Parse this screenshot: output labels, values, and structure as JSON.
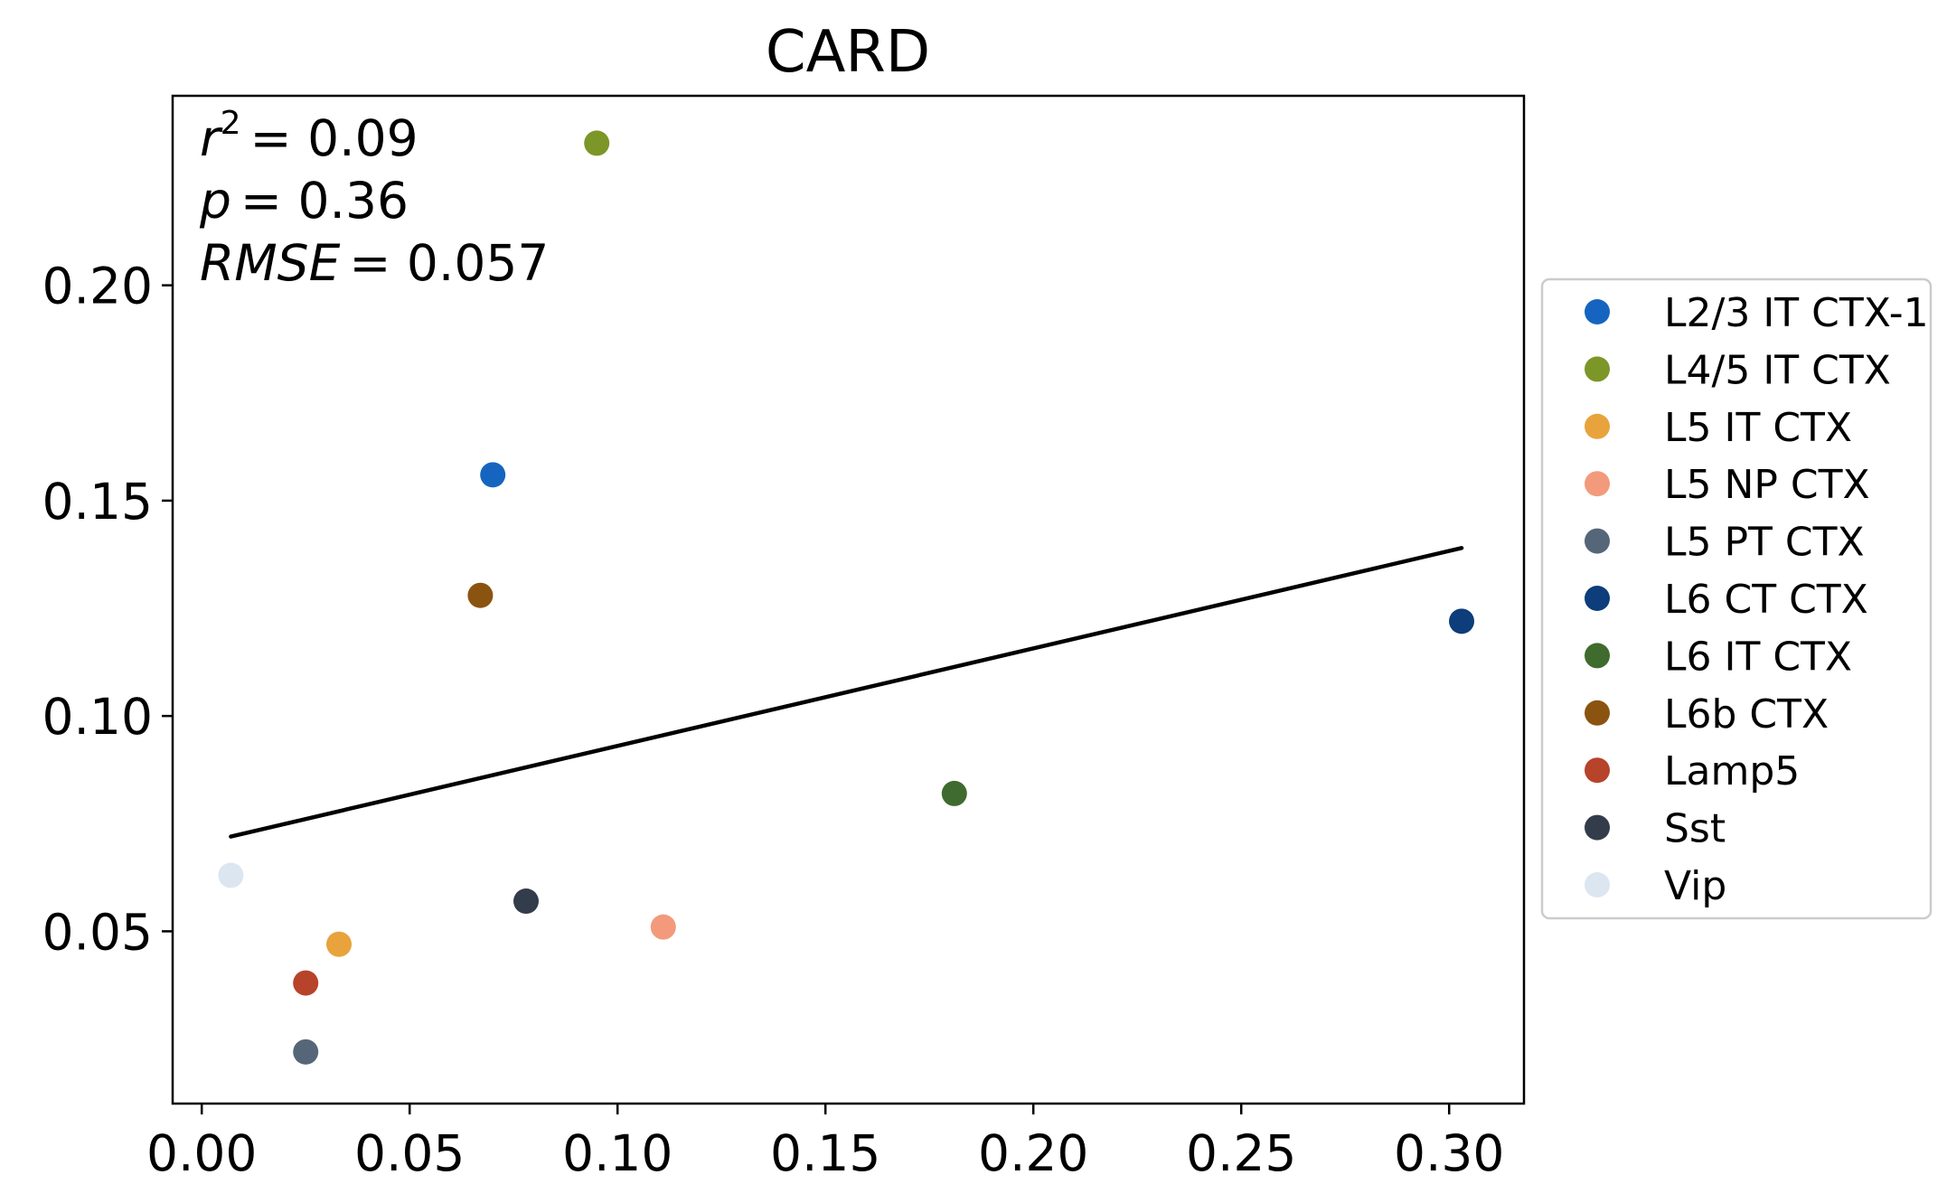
{
  "chart_data": {
    "type": "scatter",
    "title": "CARD",
    "xlabel": "",
    "ylabel": "",
    "xlim": [
      -0.007,
      0.318
    ],
    "ylim": [
      0.01,
      0.244
    ],
    "xticks": [
      0.0,
      0.05,
      0.1,
      0.15,
      0.2,
      0.25,
      0.3
    ],
    "xtick_labels": [
      "0.00",
      "0.05",
      "0.10",
      "0.15",
      "0.20",
      "0.25",
      "0.30"
    ],
    "yticks": [
      0.05,
      0.1,
      0.15,
      0.2
    ],
    "ytick_labels": [
      "0.05",
      "0.10",
      "0.15",
      "0.20"
    ],
    "grid": false,
    "legend_position": "right, outside plot",
    "stats": {
      "r2_label": "r",
      "r2_exp": "2",
      "r2_value": "= 0.09",
      "p_label": "p",
      "p_value": "= 0.36",
      "rmse_label": "RMSE",
      "rmse_value": "= 0.057"
    },
    "points": [
      {
        "name": "L2/3 IT CTX-1",
        "x": 0.07,
        "y": 0.156,
        "color": "#1565c0"
      },
      {
        "name": "L4/5 IT CTX",
        "x": 0.095,
        "y": 0.233,
        "color": "#7c9628"
      },
      {
        "name": "L5 IT CTX",
        "x": 0.033,
        "y": 0.047,
        "color": "#e8a33c"
      },
      {
        "name": "L5 NP CTX",
        "x": 0.111,
        "y": 0.051,
        "color": "#f39a7c"
      },
      {
        "name": "L5 PT CTX",
        "x": 0.025,
        "y": 0.022,
        "color": "#566679"
      },
      {
        "name": "L6 CT CTX",
        "x": 0.303,
        "y": 0.122,
        "color": "#0d3d7a"
      },
      {
        "name": "L6 IT CTX",
        "x": 0.181,
        "y": 0.082,
        "color": "#3f6b2e"
      },
      {
        "name": "L6b CTX",
        "x": 0.067,
        "y": 0.128,
        "color": "#8a5410"
      },
      {
        "name": "Lamp5",
        "x": 0.025,
        "y": 0.038,
        "color": "#b7432a"
      },
      {
        "name": "Sst",
        "x": 0.078,
        "y": 0.057,
        "color": "#333c4b"
      },
      {
        "name": "Vip",
        "x": 0.007,
        "y": 0.063,
        "color": "#dce6f1"
      }
    ],
    "fit_line": {
      "x": [
        0.007,
        0.303
      ],
      "y": [
        0.072,
        0.139
      ],
      "color": "#000000"
    }
  }
}
